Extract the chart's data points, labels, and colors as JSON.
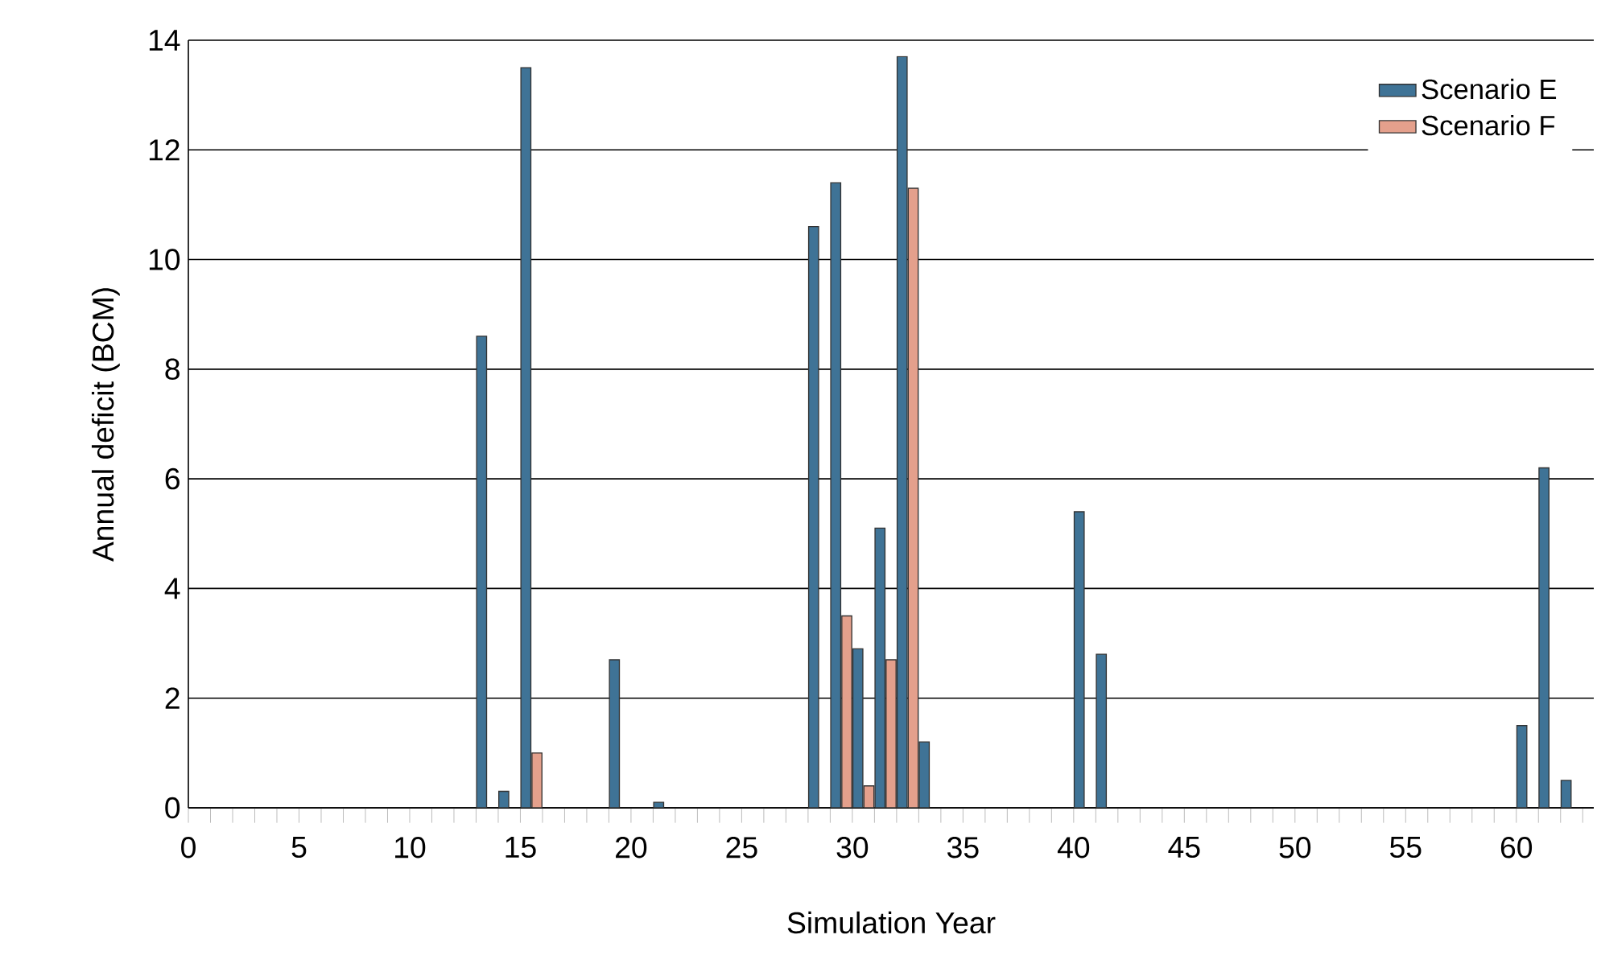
{
  "chart_data": {
    "type": "bar",
    "xlabel": "Simulation Year",
    "ylabel": "Annual deficit (BCM)",
    "x": [
      13.5,
      14.5,
      15.5,
      19.5,
      21.5,
      28.5,
      29.5,
      30.5,
      31.5,
      32.5,
      33.5,
      40.5,
      41.5,
      60.5,
      61.5,
      62.5
    ],
    "series": [
      {
        "name": "Scenario E",
        "color": "#3f7396",
        "values": [
          8.6,
          0.3,
          13.5,
          2.7,
          0.1,
          10.6,
          11.4,
          2.9,
          5.1,
          13.7,
          1.2,
          5.4,
          2.8,
          1.5,
          6.2,
          0.5
        ]
      },
      {
        "name": "Scenario F",
        "color": "#e4a08c",
        "values": [
          null,
          null,
          1.0,
          null,
          null,
          null,
          3.5,
          0.4,
          2.7,
          11.3,
          null,
          null,
          null,
          null,
          null,
          null
        ]
      }
    ],
    "xlim": [
      0,
      63.5
    ],
    "xticks": [
      0,
      {
        "value": 1,
        "label": null
      },
      {
        "value": 2,
        "label": null
      },
      {
        "value": 3,
        "label": null
      },
      {
        "value": 4,
        "label": null
      },
      5,
      {
        "value": 6,
        "label": null
      },
      {
        "value": 7,
        "label": null
      },
      {
        "value": 8,
        "label": null
      },
      {
        "value": 9,
        "label": null
      },
      10,
      {
        "value": 11,
        "label": null
      },
      {
        "value": 12,
        "label": null
      },
      {
        "value": 13,
        "label": null
      },
      {
        "value": 14,
        "label": null
      },
      15,
      {
        "value": 16,
        "label": null
      },
      {
        "value": 17,
        "label": null
      },
      {
        "value": 18,
        "label": null
      },
      {
        "value": 19,
        "label": null
      },
      20,
      {
        "value": 21,
        "label": null
      },
      {
        "value": 22,
        "label": null
      },
      {
        "value": 23,
        "label": null
      },
      {
        "value": 24,
        "label": null
      },
      25,
      {
        "value": 26,
        "label": null
      },
      {
        "value": 27,
        "label": null
      },
      {
        "value": 28,
        "label": null
      },
      {
        "value": 29,
        "label": null
      },
      30,
      {
        "value": 31,
        "label": null
      },
      {
        "value": 32,
        "label": null
      },
      {
        "value": 33,
        "label": null
      },
      {
        "value": 34,
        "label": null
      },
      35,
      {
        "value": 36,
        "label": null
      },
      {
        "value": 37,
        "label": null
      },
      {
        "value": 38,
        "label": null
      },
      {
        "value": 39,
        "label": null
      },
      40,
      {
        "value": 41,
        "label": null
      },
      {
        "value": 42,
        "label": null
      },
      {
        "value": 43,
        "label": null
      },
      {
        "value": 44,
        "label": null
      },
      45,
      {
        "value": 46,
        "label": null
      },
      {
        "value": 47,
        "label": null
      },
      {
        "value": 48,
        "label": null
      },
      {
        "value": 49,
        "label": null
      },
      50,
      {
        "value": 51,
        "label": null
      },
      {
        "value": 52,
        "label": null
      },
      {
        "value": 53,
        "label": null
      },
      {
        "value": 54,
        "label": null
      },
      55,
      {
        "value": 56,
        "label": null
      },
      {
        "value": 57,
        "label": null
      },
      {
        "value": 58,
        "label": null
      },
      {
        "value": 59,
        "label": null
      },
      60,
      {
        "value": 61,
        "label": null
      },
      {
        "value": 62,
        "label": null
      },
      {
        "value": 63,
        "label": null
      }
    ],
    "ylim": [
      0,
      14
    ],
    "yticks": [
      0,
      2,
      4,
      6,
      8,
      10,
      12,
      14
    ],
    "grid": "y",
    "legend": "top right"
  }
}
